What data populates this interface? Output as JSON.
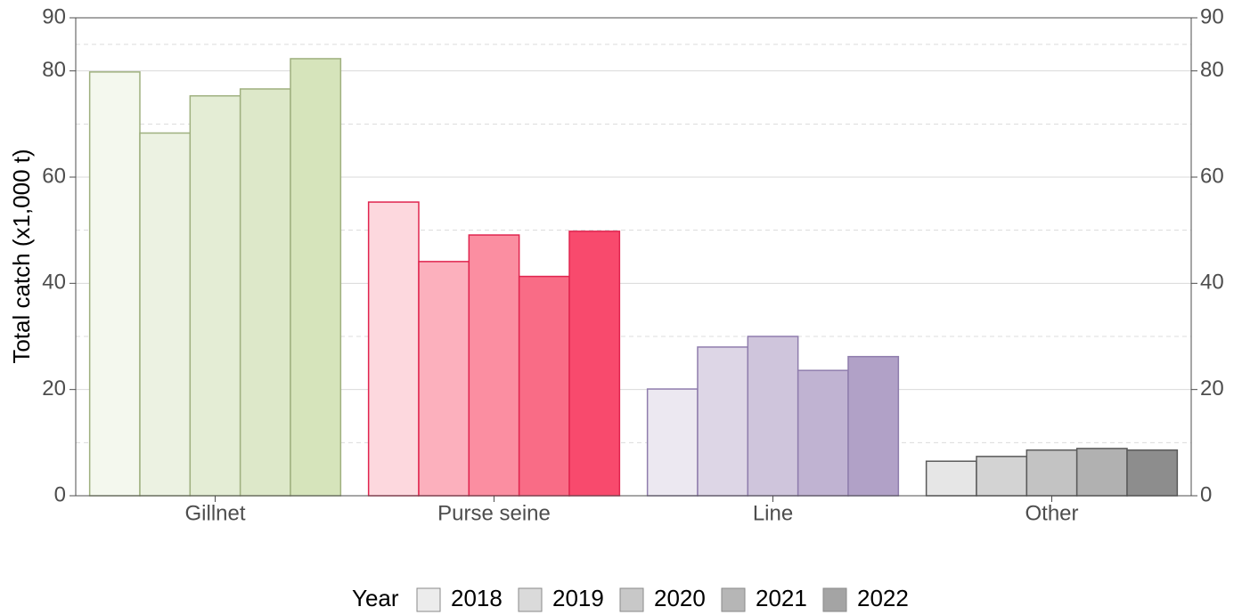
{
  "chart_data": {
    "type": "bar",
    "y_label": "Total catch (x1,000 t)",
    "categories": [
      "Gillnet",
      "Purse seine",
      "Line",
      "Other"
    ],
    "edge_colors": [
      "#9fb07f",
      "#e0254f",
      "#8f7dad",
      "#5a5a5a"
    ],
    "series": [
      {
        "name": "2018",
        "legend_color": "#ececec",
        "colors": [
          "#f4f8ee",
          "#fdd8de",
          "#ece8f1",
          "#e6e6e6"
        ],
        "values": [
          79.8,
          55.3,
          20.1,
          6.5
        ]
      },
      {
        "name": "2019",
        "legend_color": "#dadada",
        "colors": [
          "#ecf2e2",
          "#fcb0bd",
          "#ddd6e6",
          "#d3d3d3"
        ],
        "values": [
          68.3,
          44.1,
          28.0,
          7.4
        ]
      },
      {
        "name": "2020",
        "legend_color": "#c8c8c8",
        "colors": [
          "#e4edd5",
          "#fb8ea1",
          "#cfc5dc",
          "#c3c3c3"
        ],
        "values": [
          75.3,
          49.1,
          30.0,
          8.6
        ]
      },
      {
        "name": "2021",
        "legend_color": "#b6b6b6",
        "colors": [
          "#dde8c9",
          "#f96c86",
          "#c0b3d2",
          "#b1b1b1"
        ],
        "values": [
          76.6,
          41.3,
          23.6,
          8.9
        ]
      },
      {
        "name": "2022",
        "legend_color": "#a4a4a4",
        "colors": [
          "#d6e4bb",
          "#f84a6d",
          "#b1a1c7",
          "#8d8d8d"
        ],
        "values": [
          82.3,
          49.8,
          26.2,
          8.6
        ]
      }
    ],
    "legend_title": "Year",
    "legend_position": "bottom",
    "ylim": [
      0,
      90
    ],
    "yticks": [
      0,
      20,
      40,
      60,
      80,
      90
    ],
    "minor_yticks": [
      10,
      30,
      50,
      70,
      85
    ],
    "y2lim": [
      0,
      90
    ],
    "y2ticks": [
      0,
      20,
      40,
      60,
      80,
      90
    ],
    "grid": true
  }
}
